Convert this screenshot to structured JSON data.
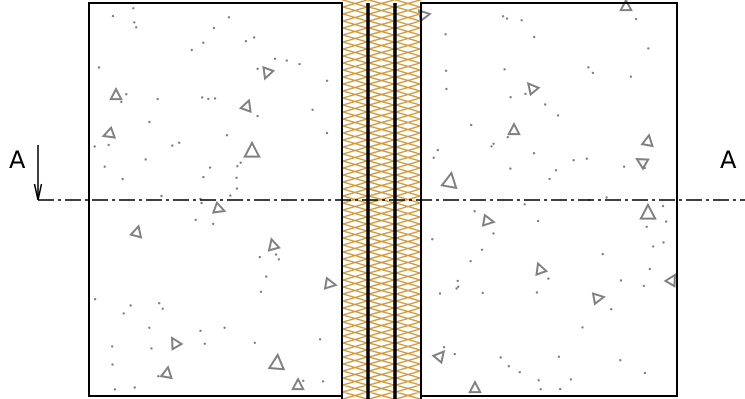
{
  "section": {
    "left_label": "A",
    "right_label": "A"
  },
  "colors": {
    "line": "#000000",
    "insulation": "#d19a3c",
    "aggregate": "#808080"
  },
  "icons": {
    "section_arrow": "arrow-down-icon",
    "aggregate_mark": "triangle-icon"
  }
}
